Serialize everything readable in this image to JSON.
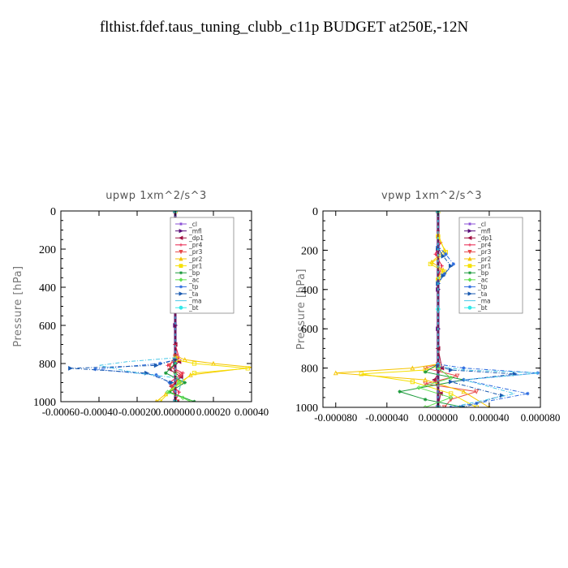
{
  "title": "flthist.fdef.taus_tuning_clubb_c11p  BUDGET at250E,-12N",
  "legend_entries": [
    {
      "label": "_cl",
      "color": "#8a4fd6",
      "marker": "star"
    },
    {
      "label": "_mfl",
      "color": "#5b0f7a",
      "marker": "tri-right"
    },
    {
      "label": "_dp1",
      "color": "#a01040",
      "marker": "tri-left"
    },
    {
      "label": "_pr4",
      "color": "#e8204a",
      "marker": "plus"
    },
    {
      "label": "_pr3",
      "color": "#e84a4a",
      "marker": "tri-down"
    },
    {
      "label": "_pr2",
      "color": "#f5c400",
      "marker": "tri-up"
    },
    {
      "label": "_pr1",
      "color": "#f5e000",
      "marker": "square"
    },
    {
      "label": "_bp",
      "color": "#1a9a3a",
      "marker": "star"
    },
    {
      "label": "_ac",
      "color": "#60e050",
      "marker": "diamond"
    },
    {
      "label": "_tp",
      "color": "#2a6adf",
      "marker": "star"
    },
    {
      "label": "_ta",
      "color": "#1a5ab0",
      "marker": "tri-right"
    },
    {
      "label": "_ma",
      "color": "#4ac8e8",
      "marker": "none"
    },
    {
      "label": "_bt",
      "color": "#30e8e8",
      "marker": "circle"
    }
  ],
  "chart_data": [
    {
      "type": "line",
      "title": "upwp   1xm^2/s^3",
      "ylabel": "Pressure [hPa]",
      "xlim": [
        -0.0006,
        0.0004
      ],
      "ylim": [
        0,
        1000
      ],
      "y_inverted": true,
      "xticks": [
        -0.0006,
        -0.0004,
        -0.0002,
        0.0,
        0.0002,
        0.0004
      ],
      "xtick_labels": [
        "-0.00060",
        "-0.00040",
        "-0.00020",
        "0.000000",
        "0.00020",
        "0.00040"
      ],
      "yticks": [
        0,
        200,
        400,
        600,
        800,
        1000
      ],
      "ytick_labels": [
        "0",
        "200",
        "400",
        "600",
        "800",
        "1000"
      ],
      "legend_position": "top-right",
      "series": [
        {
          "name": "_cl",
          "color": "#8a4fd6",
          "x": [
            0,
            0,
            0,
            0,
            0,
            0
          ],
          "y": [
            0,
            200,
            400,
            600,
            800,
            1000
          ]
        },
        {
          "name": "_mfl",
          "color": "#5b0f7a",
          "x": [
            0,
            0,
            0,
            0,
            0,
            0
          ],
          "y": [
            0,
            200,
            400,
            600,
            800,
            1000
          ]
        },
        {
          "name": "_dp1",
          "color": "#a01040",
          "x": [
            0,
            0,
            0,
            0,
            2e-05,
            -3e-05,
            3e-05,
            -2e-05,
            1e-05
          ],
          "y": [
            0,
            500,
            700,
            760,
            790,
            830,
            870,
            920,
            1000
          ]
        },
        {
          "name": "_pr4",
          "color": "#e8204a",
          "x": [
            0,
            0,
            2e-05,
            -4e-05,
            4e-05,
            -3e-05,
            2e-05,
            0
          ],
          "y": [
            0,
            700,
            770,
            810,
            850,
            900,
            950,
            1000
          ]
        },
        {
          "name": "_pr3",
          "color": "#e84a4a",
          "x": [
            0,
            0,
            -3e-05,
            3e-05,
            -2e-05,
            1e-05
          ],
          "y": [
            0,
            760,
            810,
            860,
            920,
            1000
          ]
        },
        {
          "name": "_pr2",
          "color": "#f5c400",
          "x": [
            0,
            0,
            5e-05,
            0.0002,
            0.00041,
            8e-05,
            3e-05,
            -5e-05,
            -0.0001
          ],
          "y": [
            0,
            760,
            780,
            800,
            820,
            860,
            900,
            960,
            1000
          ]
        },
        {
          "name": "_pr1",
          "color": "#f5e000",
          "x": [
            0,
            0,
            0.0001,
            0.00038,
            0.0001,
            2e-05,
            -8e-05
          ],
          "y": [
            0,
            780,
            800,
            825,
            850,
            900,
            1000
          ]
        },
        {
          "name": "_bp",
          "color": "#1a9a3a",
          "x": [
            0,
            0,
            -5e-05,
            5e-05,
            -3e-05,
            0.0001
          ],
          "y": [
            0,
            800,
            850,
            900,
            950,
            1000
          ]
        },
        {
          "name": "_ac",
          "color": "#60e050",
          "x": [
            0,
            0,
            2e-05,
            -4e-05,
            4e-05,
            8e-05
          ],
          "y": [
            0,
            850,
            900,
            950,
            980,
            1000
          ]
        },
        {
          "name": "_tp",
          "color": "#2a6adf",
          "x": [
            0,
            0,
            -8e-05,
            -0.00042,
            -0.0001,
            -3e-05
          ],
          "y": [
            0,
            780,
            800,
            830,
            860,
            900
          ]
        },
        {
          "name": "_ta",
          "color": "#1a5ab0",
          "x": [
            0,
            0,
            -0.0001,
            -0.00055,
            -0.00015,
            -2e-05
          ],
          "y": [
            0,
            780,
            810,
            825,
            850,
            900
          ]
        },
        {
          "name": "_ma",
          "color": "#4ac8e8",
          "x": [
            0,
            0,
            -0.00025,
            -0.0004,
            -0.0002,
            4e-05,
            2e-05
          ],
          "y": [
            0,
            770,
            790,
            810,
            850,
            880,
            940
          ]
        },
        {
          "name": "_bt",
          "color": "#30e8e8",
          "x": [
            0,
            0,
            0
          ],
          "y": [
            0,
            500,
            1000
          ]
        }
      ]
    },
    {
      "type": "line",
      "title": "vpwp   1xm^2/s^3",
      "ylabel": "Pressure [hPa]",
      "xlim": [
        -9e-05,
        8e-05
      ],
      "ylim": [
        0,
        1000
      ],
      "y_inverted": true,
      "xticks": [
        -8e-05,
        -4e-05,
        0.0,
        4e-05,
        8e-05
      ],
      "xtick_labels": [
        "-0.000080",
        "-0.000040",
        "0.000000",
        "0.000040",
        "0.000080"
      ],
      "yticks": [
        0,
        200,
        400,
        600,
        800,
        1000
      ],
      "ytick_labels": [
        "0",
        "200",
        "400",
        "600",
        "800",
        "1000"
      ],
      "legend_position": "top-right",
      "series": [
        {
          "name": "_cl",
          "color": "#8a4fd6",
          "x": [
            0,
            0,
            0,
            0,
            0,
            0
          ],
          "y": [
            0,
            200,
            400,
            600,
            800,
            1000
          ]
        },
        {
          "name": "_mfl",
          "color": "#5b0f7a",
          "x": [
            0,
            0,
            0,
            0,
            0,
            0
          ],
          "y": [
            0,
            200,
            400,
            600,
            800,
            1000
          ]
        },
        {
          "name": "_dp1",
          "color": "#a01040",
          "x": [
            0,
            0,
            3e-06,
            -3e-06,
            2e-06,
            0
          ],
          "y": [
            0,
            700,
            800,
            860,
            930,
            1000
          ]
        },
        {
          "name": "_pr4",
          "color": "#e8204a",
          "x": [
            0,
            0,
            2e-06,
            -2e-06,
            3e-06,
            0
          ],
          "y": [
            0,
            100,
            160,
            220,
            280,
            340
          ]
        },
        {
          "name": "_pr3",
          "color": "#e84a4a",
          "x": [
            0,
            0,
            -1e-05,
            1.5e-05,
            -1e-05,
            3e-05,
            1e-05,
            5e-06
          ],
          "y": [
            0,
            780,
            800,
            840,
            880,
            920,
            960,
            1000
          ]
        },
        {
          "name": "_pr2",
          "color": "#f5c400",
          "x": [
            0,
            0,
            5e-06,
            -5e-06,
            4e-06,
            0,
            0,
            -2e-05,
            -8e-05,
            -1e-05,
            2e-05,
            4e-05
          ],
          "y": [
            0,
            120,
            200,
            260,
            300,
            340,
            780,
            800,
            825,
            860,
            920,
            1000
          ]
        },
        {
          "name": "_pr1",
          "color": "#f5e000",
          "x": [
            0,
            0,
            6e-06,
            -6e-06,
            5e-06,
            0,
            0,
            -1e-05,
            -6e-05,
            -2e-05,
            1e-05,
            3e-05
          ],
          "y": [
            0,
            130,
            210,
            270,
            310,
            350,
            790,
            810,
            830,
            870,
            930,
            1000
          ]
        },
        {
          "name": "_bp",
          "color": "#1a9a3a",
          "x": [
            0,
            0,
            -1e-05,
            2e-05,
            -3e-05,
            -1e-05,
            2e-05
          ],
          "y": [
            0,
            780,
            820,
            860,
            920,
            960,
            1000
          ]
        },
        {
          "name": "_ac",
          "color": "#60e050",
          "x": [
            0,
            0,
            1e-05,
            -1.5e-05,
            1e-05,
            -1e-05
          ],
          "y": [
            0,
            800,
            850,
            900,
            950,
            1000
          ]
        },
        {
          "name": "_tp",
          "color": "#2a6adf",
          "x": [
            0,
            0,
            6e-06,
            1.2e-05,
            5e-06,
            0,
            0,
            2e-05,
            7.8e-05,
            2e-05,
            7e-05,
            3e-05,
            1e-05
          ],
          "y": [
            0,
            180,
            220,
            270,
            320,
            360,
            780,
            800,
            825,
            860,
            930,
            980,
            1000
          ]
        },
        {
          "name": "_ta",
          "color": "#1a5ab0",
          "x": [
            0,
            0,
            4e-06,
            1e-05,
            4e-06,
            0,
            0,
            1e-05,
            6e-05,
            1e-05,
            5e-05,
            2e-05
          ],
          "y": [
            0,
            190,
            230,
            280,
            330,
            370,
            790,
            810,
            830,
            870,
            940,
            1000
          ]
        },
        {
          "name": "_ma",
          "color": "#4ac8e8",
          "x": [
            0,
            0,
            2e-05,
            8e-05,
            2e-05,
            6e-05,
            1e-05
          ],
          "y": [
            0,
            790,
            810,
            825,
            860,
            930,
            1000
          ]
        },
        {
          "name": "_bt",
          "color": "#30e8e8",
          "x": [
            0,
            0,
            0
          ],
          "y": [
            0,
            500,
            1000
          ]
        }
      ]
    }
  ]
}
